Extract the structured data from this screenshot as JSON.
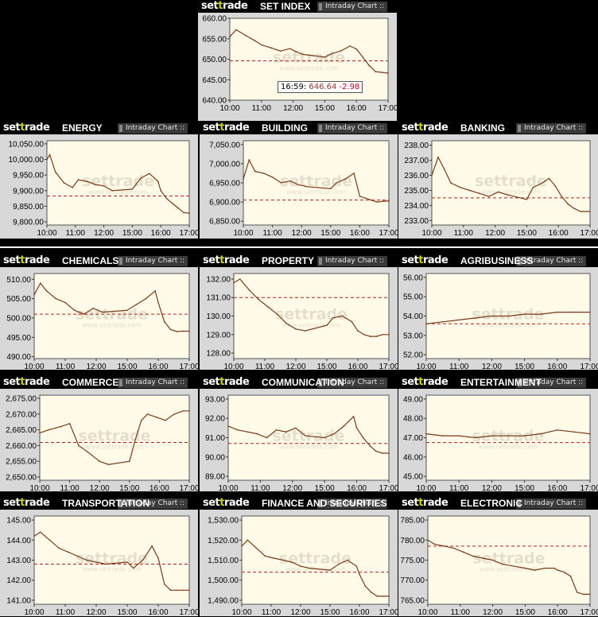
{
  "brand": {
    "logo_pre": "set",
    "logo_accent": "t",
    "logo_post": "rade",
    "intraday_label": "Intraday Chart ::",
    "watermark": "settrade",
    "watermark_url": "www.settrade.com"
  },
  "colors": {
    "line": "#7a3a1a",
    "prev_close": "#b02020",
    "plot_bg": "#fffbe8",
    "accent": "#c8d400"
  },
  "main_tooltip": {
    "time": "16:59",
    "value": "646.64",
    "change": "-2.98"
  },
  "x_ticks": [
    "10:00",
    "11:00",
    "12:00",
    "15:00",
    "16:00",
    "17:00"
  ],
  "chart_data": [
    {
      "type": "line",
      "title": "SET INDEX",
      "yticks": [
        "660.00",
        "655.00",
        "650.00",
        "645.00",
        "640.00"
      ],
      "ylim": [
        640,
        660
      ],
      "prev_close": 649.62,
      "x": [
        10.0,
        10.2,
        10.5,
        10.8,
        11.0,
        11.3,
        11.6,
        11.9,
        12.1,
        12.3,
        15.0,
        15.2,
        15.5,
        15.8,
        16.0,
        16.2,
        16.4,
        16.6,
        16.8,
        17.0
      ],
      "values": [
        655.5,
        657.2,
        655.8,
        654.5,
        653.5,
        652.8,
        652.0,
        652.6,
        651.8,
        651.2,
        650.5,
        651.3,
        652.0,
        653.2,
        652.5,
        650.5,
        648.5,
        647.0,
        646.8,
        646.6
      ]
    },
    {
      "type": "line",
      "title": "ENERGY",
      "yticks": [
        "10,050.00",
        "10,000.00",
        "9,950.00",
        "9,900.00",
        "9,850.00",
        "9,800.00"
      ],
      "ylim": [
        9790,
        10060
      ],
      "prev_close": 9883,
      "x": [
        10.0,
        10.1,
        10.3,
        10.6,
        10.9,
        11.1,
        11.4,
        11.7,
        12.0,
        12.3,
        15.0,
        15.3,
        15.6,
        15.9,
        16.0,
        16.2,
        16.4,
        16.6,
        16.8,
        17.0
      ],
      "values": [
        10000,
        10015,
        9960,
        9925,
        9910,
        9935,
        9930,
        9920,
        9915,
        9900,
        9905,
        9940,
        9955,
        9930,
        9900,
        9875,
        9860,
        9845,
        9830,
        9828
      ]
    },
    {
      "type": "line",
      "title": "BUILDING",
      "yticks": [
        "7,050.00",
        "7,000.00",
        "6,950.00",
        "6,900.00",
        "6,850.00"
      ],
      "ylim": [
        6840,
        7060
      ],
      "prev_close": 6905,
      "x": [
        10.0,
        10.2,
        10.4,
        10.7,
        11.0,
        11.3,
        11.6,
        11.9,
        12.2,
        15.0,
        15.2,
        15.5,
        15.8,
        16.0,
        16.2,
        16.4,
        16.6,
        16.8,
        17.0
      ],
      "values": [
        6960,
        7010,
        6980,
        6975,
        6965,
        6950,
        6955,
        6945,
        6940,
        6935,
        6950,
        6960,
        6975,
        6915,
        6910,
        6905,
        6900,
        6902,
        6903
      ]
    },
    {
      "type": "line",
      "title": "BANKING",
      "yticks": [
        "238.00",
        "237.00",
        "236.00",
        "235.00",
        "234.00",
        "233.00"
      ],
      "ylim": [
        232.7,
        238.3
      ],
      "prev_close": 234.5,
      "x": [
        10.0,
        10.2,
        10.4,
        10.6,
        10.9,
        11.2,
        11.5,
        11.8,
        12.1,
        12.4,
        15.0,
        15.2,
        15.5,
        15.7,
        15.9,
        16.1,
        16.3,
        16.5,
        16.7,
        17.0
      ],
      "values": [
        236.0,
        237.2,
        236.4,
        235.5,
        235.2,
        235.0,
        234.8,
        234.6,
        234.9,
        234.7,
        234.4,
        235.2,
        235.5,
        235.8,
        235.3,
        234.6,
        234.1,
        233.8,
        233.6,
        233.6
      ]
    },
    {
      "type": "line",
      "title": "CHEMICALS",
      "yticks": [
        "510.00",
        "505.00",
        "500.00",
        "495.00",
        "490.00"
      ],
      "ylim": [
        489.5,
        511.5
      ],
      "prev_close": 501,
      "x": [
        10.0,
        10.2,
        10.4,
        10.7,
        11.0,
        11.3,
        11.6,
        11.9,
        12.2,
        15.0,
        15.3,
        15.6,
        15.9,
        16.0,
        16.2,
        16.4,
        16.6,
        16.8,
        17.0
      ],
      "values": [
        506,
        509,
        507,
        505,
        504,
        502,
        501,
        502.5,
        501.5,
        502,
        503.5,
        505,
        507,
        504,
        499,
        497,
        496.5,
        496.6,
        496.6
      ]
    },
    {
      "type": "line",
      "title": "PROPERTY",
      "yticks": [
        "132.00",
        "131.00",
        "130.00",
        "129.00",
        "128.00"
      ],
      "ylim": [
        127.7,
        132.3
      ],
      "prev_close": 131,
      "x": [
        10.0,
        10.2,
        10.5,
        10.8,
        11.1,
        11.4,
        11.7,
        12.0,
        12.3,
        15.0,
        15.2,
        15.5,
        15.8,
        16.0,
        16.2,
        16.4,
        16.6,
        16.8,
        17.0
      ],
      "values": [
        131.8,
        132.0,
        131.4,
        130.9,
        130.5,
        130.1,
        129.6,
        129.3,
        129.2,
        129.5,
        129.9,
        130.0,
        129.7,
        129.2,
        129.0,
        128.9,
        128.9,
        129.0,
        129.0
      ]
    },
    {
      "type": "line",
      "title": "AGRIBUSINESS",
      "yticks": [
        "56.00",
        "55.00",
        "54.00",
        "53.00",
        "52.00"
      ],
      "ylim": [
        51.8,
        56.2
      ],
      "prev_close": 53.6,
      "x": [
        10.0,
        10.5,
        11.0,
        11.5,
        12.0,
        12.5,
        15.0,
        15.5,
        16.0,
        16.5,
        17.0
      ],
      "values": [
        53.6,
        53.7,
        53.8,
        53.9,
        54.0,
        54.0,
        54.1,
        54.1,
        54.2,
        54.2,
        54.2
      ]
    },
    {
      "type": "line",
      "title": "COMMERCE",
      "yticks": [
        "2,675.00",
        "2,670.00",
        "2,665.00",
        "2,660.00",
        "2,655.00",
        "2,650.00"
      ],
      "ylim": [
        2649,
        2676
      ],
      "prev_close": 2661,
      "x": [
        10.0,
        10.3,
        10.7,
        11.0,
        11.3,
        11.6,
        12.0,
        12.3,
        15.0,
        15.2,
        15.4,
        15.6,
        15.9,
        16.2,
        16.5,
        16.8,
        17.0
      ],
      "values": [
        2664,
        2665,
        2666,
        2667,
        2660,
        2658,
        2655,
        2654,
        2655,
        2662,
        2668,
        2670,
        2669,
        2668,
        2670,
        2671,
        2671
      ]
    },
    {
      "type": "line",
      "title": "COMMUNICATION",
      "yticks": [
        "93.00",
        "92.00",
        "91.00",
        "90.00",
        "89.00"
      ],
      "ylim": [
        88.8,
        93.2
      ],
      "prev_close": 90.7,
      "x": [
        10.0,
        10.3,
        10.6,
        10.9,
        11.2,
        11.5,
        11.8,
        12.1,
        12.4,
        15.0,
        15.3,
        15.6,
        15.9,
        16.0,
        16.2,
        16.4,
        16.6,
        16.8,
        17.0
      ],
      "values": [
        91.6,
        91.4,
        91.3,
        91.2,
        91.0,
        91.4,
        91.3,
        91.5,
        91.1,
        91.0,
        91.2,
        91.6,
        92.1,
        91.5,
        91.0,
        90.6,
        90.3,
        90.2,
        90.2
      ]
    },
    {
      "type": "line",
      "title": "ENTERTAINMENT",
      "yticks": [
        "49.00",
        "48.00",
        "47.00",
        "46.00",
        "45.00"
      ],
      "ylim": [
        44.8,
        49.2
      ],
      "prev_close": 46.75,
      "x": [
        10.0,
        10.5,
        11.0,
        11.5,
        12.0,
        12.5,
        15.0,
        15.5,
        16.0,
        16.5,
        17.0
      ],
      "values": [
        47.2,
        47.1,
        47.1,
        47.0,
        47.1,
        47.1,
        47.1,
        47.2,
        47.4,
        47.3,
        47.2
      ]
    },
    {
      "type": "line",
      "title": "TRANSPORTATION",
      "yticks": [
        "145.00",
        "144.00",
        "143.00",
        "142.00",
        "141.00"
      ],
      "ylim": [
        140.8,
        145.2
      ],
      "prev_close": 142.8,
      "x": [
        10.0,
        10.2,
        10.5,
        10.8,
        11.1,
        11.4,
        11.7,
        12.0,
        12.3,
        15.0,
        15.2,
        15.5,
        15.8,
        16.0,
        16.2,
        16.4,
        16.6,
        16.8,
        17.0
      ],
      "values": [
        144.2,
        144.4,
        144.0,
        143.6,
        143.4,
        143.2,
        143.0,
        142.9,
        142.8,
        142.9,
        142.6,
        143.0,
        143.7,
        143.1,
        141.8,
        141.5,
        141.5,
        141.5,
        141.5
      ]
    },
    {
      "type": "line",
      "title": "FINANCE AND SECURITIES",
      "yticks": [
        "1,530.00",
        "1,520.00",
        "1,510.00",
        "1,500.00",
        "1,490.00"
      ],
      "ylim": [
        1488,
        1532
      ],
      "prev_close": 1504,
      "x": [
        10.0,
        10.2,
        10.5,
        10.8,
        11.1,
        11.4,
        11.7,
        12.0,
        12.3,
        15.0,
        15.3,
        15.6,
        15.9,
        16.0,
        16.2,
        16.4,
        16.6,
        16.8,
        17.0
      ],
      "values": [
        1517,
        1520,
        1516,
        1512,
        1511,
        1510,
        1509,
        1507,
        1506,
        1505,
        1508,
        1510,
        1507,
        1503,
        1497,
        1494,
        1492,
        1492,
        1492
      ]
    },
    {
      "type": "line",
      "title": "ELECTRONIC",
      "yticks": [
        "785.00",
        "780.00",
        "775.00",
        "770.00",
        "765.00"
      ],
      "ylim": [
        764,
        786
      ],
      "prev_close": 778.5,
      "x": [
        10.0,
        10.2,
        10.5,
        10.8,
        11.1,
        11.4,
        11.7,
        12.0,
        12.3,
        15.0,
        15.3,
        15.6,
        15.9,
        16.0,
        16.2,
        16.4,
        16.6,
        16.8,
        17.0
      ],
      "values": [
        780,
        779,
        778.5,
        778,
        777,
        776,
        775.5,
        775,
        774,
        773,
        772.5,
        773,
        773,
        772.5,
        772,
        771,
        767,
        766.5,
        766.5
      ]
    }
  ]
}
